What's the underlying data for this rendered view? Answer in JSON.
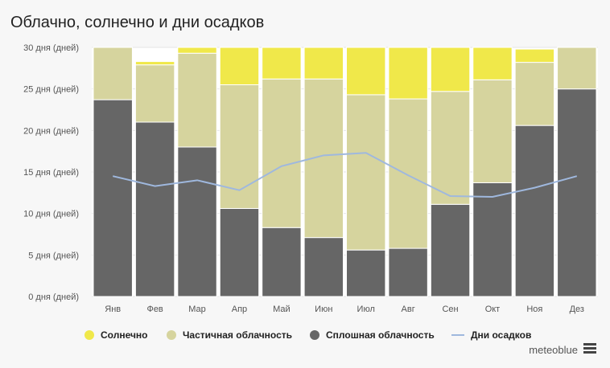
{
  "chart_data": {
    "type": "bar",
    "title": "Облачно, солнечно и дни осадков",
    "categories": [
      "Янв",
      "Фев",
      "Мар",
      "Апр",
      "Май",
      "Июн",
      "Июл",
      "Авг",
      "Сен",
      "Окт",
      "Ноя",
      "Дез"
    ],
    "ylim": [
      0,
      30
    ],
    "yticks": [
      {
        "value": 0,
        "label": "0 дня (дней)"
      },
      {
        "value": 5,
        "label": "5 дня (дней)"
      },
      {
        "value": 10,
        "label": "10 дня (дней)"
      },
      {
        "value": 15,
        "label": "15 дня (дней)"
      },
      {
        "value": 20,
        "label": "20 дня (дней)"
      },
      {
        "value": 25,
        "label": "25 дня (дней)"
      },
      {
        "value": 30,
        "label": "30 дня (дней)"
      }
    ],
    "series": [
      {
        "name": "Сплошная облачность",
        "color": "#666666",
        "values": [
          23.7,
          21.0,
          18.0,
          10.6,
          8.3,
          7.1,
          5.6,
          5.8,
          11.1,
          13.7,
          20.6,
          25.0
        ]
      },
      {
        "name": "Частичная облачность",
        "color": "#d6d49e",
        "values": [
          6.3,
          6.9,
          11.3,
          14.9,
          17.9,
          19.1,
          18.7,
          18.0,
          13.6,
          12.4,
          7.6,
          5.0
        ]
      },
      {
        "name": "Солнечно",
        "color": "#f0e84a",
        "values": [
          0.0,
          0.4,
          0.7,
          4.5,
          3.8,
          3.8,
          5.7,
          6.2,
          5.3,
          3.9,
          1.6,
          0.0
        ]
      },
      {
        "name": "Дни осадков",
        "type": "line",
        "color": "#9fb8de",
        "values": [
          14.5,
          13.3,
          14.0,
          12.8,
          15.7,
          17.0,
          17.3,
          14.6,
          12.1,
          12.0,
          13.1,
          14.5
        ]
      }
    ]
  },
  "legend": {
    "sunny": {
      "label": "Солнечно",
      "color": "#f0e84a"
    },
    "partly": {
      "label": "Частичная облачность",
      "color": "#d6d49e"
    },
    "overcast": {
      "label": "Сплошная облачность",
      "color": "#666666"
    },
    "precip": {
      "label": "Дни осадков",
      "color": "#9fb8de"
    }
  },
  "brand": "meteoblue"
}
